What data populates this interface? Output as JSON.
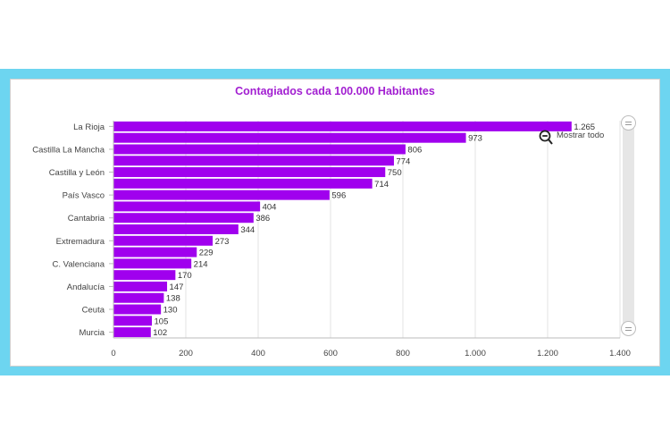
{
  "chart_data": {
    "type": "bar",
    "orientation": "horizontal",
    "title": "Contagiados cada 100.000 Habitantes",
    "xlabel": "",
    "ylabel": "",
    "xlim": [
      0,
      1400
    ],
    "x_ticks": [
      0,
      200,
      400,
      600,
      800,
      1000,
      1200,
      1400
    ],
    "x_tick_labels": [
      "0",
      "200",
      "400",
      "600",
      "800",
      "1.000",
      "1.200",
      "1.400"
    ],
    "grid": "vertical",
    "bar_color": "#a000ee",
    "categories": [
      "La Rioja",
      "",
      "Castilla La Mancha",
      "",
      "Castilla y León",
      "",
      "País Vasco",
      "",
      "Cantabria",
      "",
      "Extremadura",
      "",
      "C. Valenciana",
      "",
      "Andalucía",
      "",
      "Ceuta",
      "",
      "Murcia"
    ],
    "values": [
      1265,
      973,
      806,
      774,
      750,
      714,
      596,
      404,
      386,
      344,
      273,
      229,
      214,
      170,
      147,
      138,
      130,
      105,
      102
    ],
    "value_labels": [
      "1.265",
      "973",
      "806",
      "774",
      "750",
      "714",
      "596",
      "404",
      "386",
      "344",
      "273",
      "229",
      "214",
      "170",
      "147",
      "138",
      "130",
      "105",
      "102"
    ]
  },
  "controls": {
    "reset_zoom_label": "Mostrar todo",
    "zoom_icon": "zoom-out-icon"
  },
  "colors": {
    "frame": "#6dd5f0",
    "title": "#a21fd1"
  }
}
